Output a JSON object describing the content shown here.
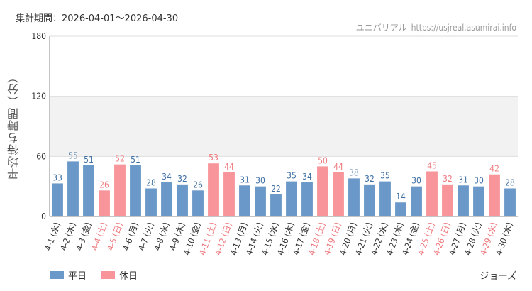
{
  "header": {
    "period": "集計期間：2026-04-01～2026-04-30",
    "site_name": "ユニバリアル",
    "site_url": "https://usjreal.asumirai.info"
  },
  "footer": {
    "attraction": "ジョーズ"
  },
  "colors": {
    "weekday": "#6a99c9",
    "holiday": "#f7959a",
    "weekday_text": "#3f6fa3",
    "holiday_text": "#ef7b80",
    "band": "#f2f2f2"
  },
  "chart_data": {
    "type": "bar",
    "ylabel": "平均待ち時間（分）",
    "ylim": [
      0,
      180
    ],
    "yticks": [
      0,
      60,
      120,
      180
    ],
    "shaded_band": [
      60,
      120
    ],
    "grid": true,
    "legend": [
      {
        "name": "平日",
        "color": "#6a99c9"
      },
      {
        "name": "休日",
        "color": "#f7959a"
      }
    ],
    "categories": [
      "4-1 (水)",
      "4-2 (木)",
      "4-3 (金)",
      "4-4 (土)",
      "4-5 (日)",
      "4-6 (月)",
      "4-7 (火)",
      "4-8 (水)",
      "4-9 (木)",
      "4-10 (金)",
      "4-11 (土)",
      "4-12 (日)",
      "4-13 (月)",
      "4-14 (火)",
      "4-15 (水)",
      "4-16 (木)",
      "4-17 (金)",
      "4-18 (土)",
      "4-19 (日)",
      "4-20 (月)",
      "4-21 (火)",
      "4-22 (水)",
      "4-23 (木)",
      "4-24 (金)",
      "4-25 (土)",
      "4-26 (日)",
      "4-27 (月)",
      "4-28 (火)",
      "4-29 (水)",
      "4-30 (木)"
    ],
    "values": [
      33,
      55,
      51,
      26,
      52,
      51,
      28,
      34,
      32,
      26,
      53,
      44,
      31,
      30,
      22,
      35,
      34,
      50,
      44,
      38,
      32,
      35,
      14,
      30,
      45,
      32,
      31,
      30,
      42,
      28
    ],
    "day_type": [
      "平日",
      "平日",
      "平日",
      "休日",
      "休日",
      "平日",
      "平日",
      "平日",
      "平日",
      "平日",
      "休日",
      "休日",
      "平日",
      "平日",
      "平日",
      "平日",
      "平日",
      "休日",
      "休日",
      "平日",
      "平日",
      "平日",
      "平日",
      "平日",
      "休日",
      "休日",
      "平日",
      "平日",
      "休日",
      "平日"
    ]
  }
}
